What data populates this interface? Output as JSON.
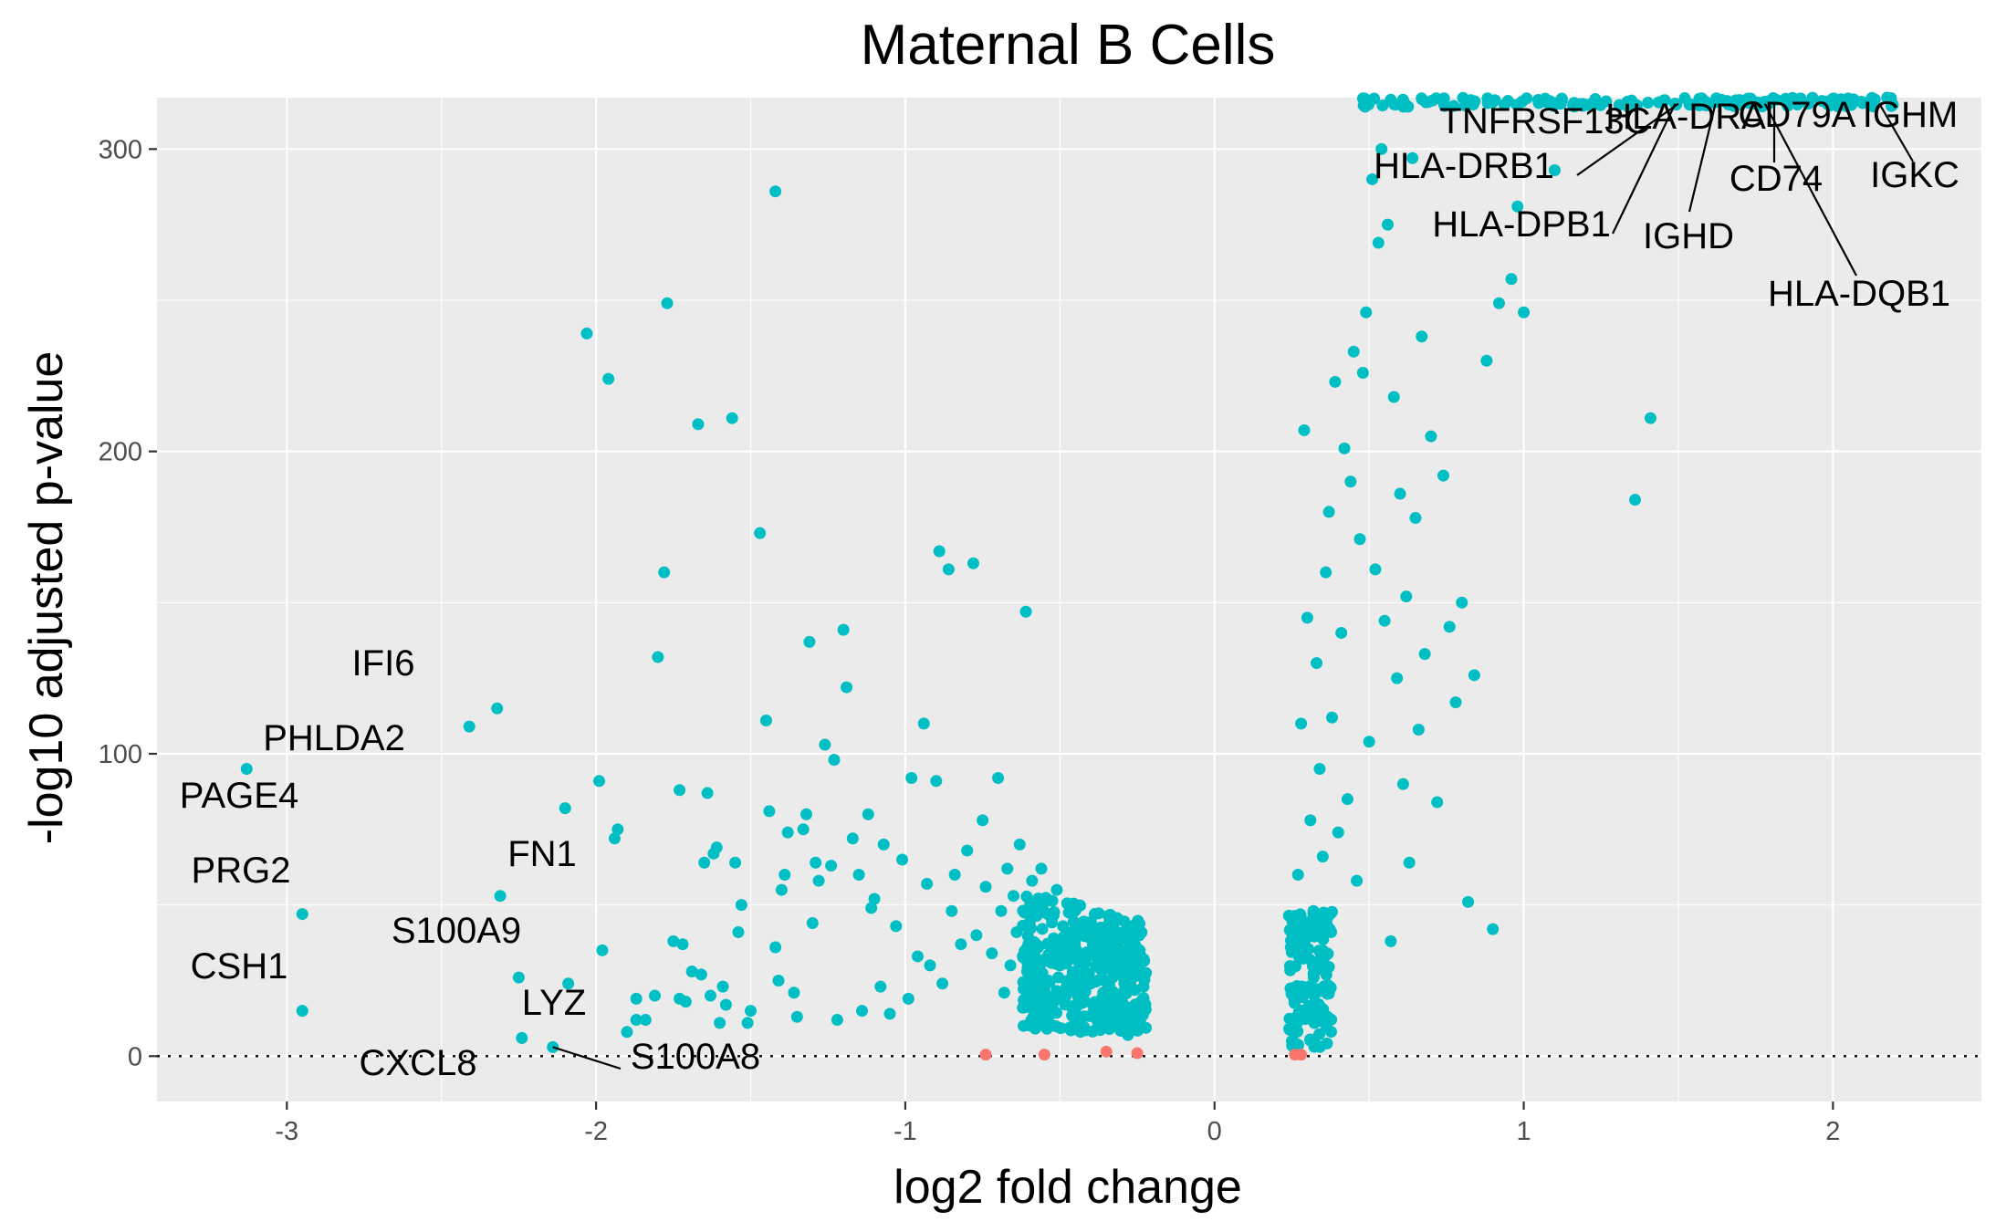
{
  "chart_data": {
    "type": "scatter",
    "title": "Maternal B Cells",
    "xlabel": "log2 fold change",
    "ylabel": "-log10 adjusted p-value",
    "xlim": [
      -3.42,
      2.48
    ],
    "ylim": [
      -15,
      317
    ],
    "x_ticks": [
      -3,
      -2,
      -1,
      0,
      1,
      2
    ],
    "x_tick_labels": [
      "-3",
      "-2",
      "-1",
      "0",
      "1",
      "2"
    ],
    "y_ticks": [
      0,
      100,
      200,
      300
    ],
    "y_tick_labels": [
      "0",
      "100",
      "200",
      "300"
    ],
    "grid": true,
    "legend": "none",
    "reference_line": {
      "orientation": "horizontal",
      "y": 0,
      "style": "dotted"
    },
    "colors": {
      "significant": "#00BFC4",
      "not_significant": "#F8766D"
    },
    "series": [
      {
        "color": "#00BFC4",
        "points": [
          [
            -3.13,
            95
          ],
          [
            -2.95,
            47
          ],
          [
            -2.95,
            15
          ],
          [
            -2.41,
            109
          ],
          [
            -2.32,
            115
          ],
          [
            -2.31,
            53
          ],
          [
            -2.25,
            26
          ],
          [
            -2.24,
            6
          ],
          [
            -2.14,
            3
          ],
          [
            -2.1,
            82
          ],
          [
            -2.09,
            24
          ],
          [
            -2.03,
            239
          ],
          [
            -1.99,
            91
          ],
          [
            -1.98,
            35
          ],
          [
            -1.96,
            224
          ],
          [
            -1.94,
            72
          ],
          [
            -1.93,
            75
          ],
          [
            -1.9,
            8
          ],
          [
            -1.87,
            19
          ],
          [
            -1.87,
            12
          ],
          [
            -1.84,
            12
          ],
          [
            -1.81,
            20
          ],
          [
            -1.8,
            132
          ],
          [
            -1.78,
            160
          ],
          [
            -1.77,
            249
          ],
          [
            -1.75,
            38
          ],
          [
            -1.73,
            88
          ],
          [
            -1.73,
            19
          ],
          [
            -1.72,
            37
          ],
          [
            -1.71,
            18
          ],
          [
            -1.69,
            28
          ],
          [
            -1.67,
            209
          ],
          [
            -1.66,
            27
          ],
          [
            -1.65,
            64
          ],
          [
            -1.64,
            87
          ],
          [
            -1.63,
            20
          ],
          [
            -1.62,
            67
          ],
          [
            -1.61,
            69
          ],
          [
            -1.6,
            11
          ],
          [
            -1.59,
            23
          ],
          [
            -1.58,
            17
          ],
          [
            -1.56,
            211
          ],
          [
            -1.55,
            64
          ],
          [
            -1.54,
            41
          ],
          [
            -1.53,
            50
          ],
          [
            -1.51,
            11
          ],
          [
            -1.5,
            15
          ],
          [
            -1.47,
            173
          ],
          [
            -1.45,
            111
          ],
          [
            -1.44,
            81
          ],
          [
            -1.42,
            286
          ],
          [
            -1.42,
            36
          ],
          [
            -1.41,
            25
          ],
          [
            -1.4,
            55
          ],
          [
            -1.39,
            60
          ],
          [
            -1.38,
            74
          ],
          [
            -1.36,
            21
          ],
          [
            -1.35,
            13
          ],
          [
            -1.33,
            75
          ],
          [
            -1.32,
            80
          ],
          [
            -1.31,
            137
          ],
          [
            -1.3,
            44
          ],
          [
            -1.29,
            64
          ],
          [
            -1.28,
            58
          ],
          [
            -1.26,
            103
          ],
          [
            -1.24,
            63
          ],
          [
            -1.23,
            98
          ],
          [
            -1.22,
            12
          ],
          [
            -1.2,
            141
          ],
          [
            -1.19,
            122
          ],
          [
            -1.17,
            72
          ],
          [
            -1.15,
            60
          ],
          [
            -1.14,
            15
          ],
          [
            -1.12,
            80
          ],
          [
            -1.11,
            49
          ],
          [
            -1.1,
            52
          ],
          [
            -1.08,
            23
          ],
          [
            -1.07,
            70
          ],
          [
            -1.05,
            14
          ],
          [
            -1.03,
            43
          ],
          [
            -1.01,
            65
          ],
          [
            -0.99,
            19
          ],
          [
            -0.98,
            92
          ],
          [
            -0.96,
            33
          ],
          [
            -0.94,
            110
          ],
          [
            -0.93,
            57
          ],
          [
            -0.92,
            30
          ],
          [
            -0.9,
            91
          ],
          [
            -0.89,
            167
          ],
          [
            -0.88,
            24
          ],
          [
            -0.86,
            161
          ],
          [
            -0.85,
            48
          ],
          [
            -0.84,
            60
          ],
          [
            -0.82,
            37
          ],
          [
            -0.8,
            68
          ],
          [
            -0.78,
            163
          ],
          [
            -0.77,
            40
          ],
          [
            -0.75,
            78
          ],
          [
            -0.74,
            56
          ],
          [
            -0.72,
            34
          ],
          [
            -0.7,
            92
          ],
          [
            -0.69,
            48
          ],
          [
            -0.68,
            21
          ],
          [
            -0.67,
            62
          ],
          [
            -0.66,
            30
          ],
          [
            -0.65,
            53
          ],
          [
            -0.64,
            41
          ],
          [
            -0.63,
            70
          ],
          [
            -0.62,
            16
          ],
          [
            -0.61,
            147
          ],
          [
            -0.6,
            44
          ],
          [
            -0.59,
            58
          ],
          [
            -0.58,
            27
          ],
          [
            -0.57,
            36
          ],
          [
            -0.56,
            62
          ],
          [
            -0.55,
            22
          ],
          [
            -0.54,
            47
          ],
          [
            -0.53,
            14
          ],
          [
            -0.52,
            39
          ],
          [
            -0.51,
            55
          ],
          [
            -0.5,
            30
          ],
          [
            -0.49,
            43
          ],
          [
            -0.48,
            20
          ],
          [
            -0.47,
            36
          ],
          [
            -0.46,
            50
          ],
          [
            -0.45,
            11
          ],
          [
            -0.44,
            28
          ],
          [
            -0.43,
            41
          ],
          [
            -0.42,
            18
          ],
          [
            -0.41,
            33
          ],
          [
            -0.4,
            24
          ],
          [
            -0.39,
            38
          ],
          [
            -0.38,
            13
          ],
          [
            -0.37,
            29
          ],
          [
            -0.36,
            21
          ],
          [
            -0.35,
            35
          ],
          [
            -0.34,
            9
          ],
          [
            -0.33,
            26
          ],
          [
            -0.32,
            17
          ],
          [
            -0.31,
            30
          ],
          [
            -0.3,
            12
          ],
          [
            -0.29,
            22
          ],
          [
            -0.28,
            7
          ],
          [
            -0.27,
            16
          ],
          [
            0.25,
            5
          ],
          [
            0.26,
            35
          ],
          [
            0.27,
            60
          ],
          [
            0.28,
            110
          ],
          [
            0.29,
            207
          ],
          [
            0.3,
            145
          ],
          [
            0.31,
            78
          ],
          [
            0.32,
            48
          ],
          [
            0.33,
            130
          ],
          [
            0.34,
            95
          ],
          [
            0.35,
            66
          ],
          [
            0.36,
            160
          ],
          [
            0.37,
            180
          ],
          [
            0.38,
            112
          ],
          [
            0.39,
            223
          ],
          [
            0.4,
            74
          ],
          [
            0.41,
            140
          ],
          [
            0.42,
            201
          ],
          [
            0.43,
            85
          ],
          [
            0.44,
            190
          ],
          [
            0.45,
            233
          ],
          [
            0.46,
            58
          ],
          [
            0.47,
            171
          ],
          [
            0.48,
            226
          ],
          [
            0.49,
            246
          ],
          [
            0.5,
            104
          ],
          [
            0.51,
            290
          ],
          [
            0.52,
            161
          ],
          [
            0.53,
            269
          ],
          [
            0.54,
            300
          ],
          [
            0.55,
            144
          ],
          [
            0.56,
            275
          ],
          [
            0.57,
            38
          ],
          [
            0.58,
            218
          ],
          [
            0.59,
            125
          ],
          [
            0.6,
            186
          ],
          [
            0.61,
            90
          ],
          [
            0.62,
            152
          ],
          [
            0.63,
            64
          ],
          [
            0.64,
            297
          ],
          [
            0.65,
            178
          ],
          [
            0.66,
            108
          ],
          [
            0.67,
            238
          ],
          [
            0.68,
            133
          ],
          [
            0.7,
            205
          ],
          [
            0.72,
            84
          ],
          [
            0.74,
            192
          ],
          [
            0.76,
            142
          ],
          [
            0.78,
            117
          ],
          [
            0.8,
            150
          ],
          [
            0.82,
            51
          ],
          [
            0.84,
            126
          ],
          [
            0.88,
            230
          ],
          [
            0.9,
            42
          ],
          [
            0.92,
            249
          ],
          [
            0.96,
            257
          ],
          [
            0.98,
            281
          ],
          [
            1.0,
            246
          ],
          [
            1.1,
            293
          ],
          [
            1.36,
            184
          ],
          [
            1.41,
            211
          ]
        ]
      },
      {
        "color": "#F8766D",
        "points": [
          [
            -0.74,
            0.5
          ],
          [
            -0.55,
            0.5
          ],
          [
            -0.35,
            1.5
          ],
          [
            -0.25,
            1
          ],
          [
            0.26,
            0.5
          ],
          [
            0.28,
            0.5
          ]
        ]
      }
    ],
    "annotations": [
      {
        "label": "IFI6",
        "x": -2.32,
        "y": 115
      },
      {
        "label": "PHLDA2",
        "x": -2.41,
        "y": 109
      },
      {
        "label": "PAGE4",
        "x": -3.13,
        "y": 95
      },
      {
        "label": "FN1",
        "x": -2.31,
        "y": 53
      },
      {
        "label": "PRG2",
        "x": -2.95,
        "y": 47
      },
      {
        "label": "S100A9",
        "x": -2.25,
        "y": 26
      },
      {
        "label": "CSH1",
        "x": -2.95,
        "y": 15
      },
      {
        "label": "LYZ",
        "x": -2.24,
        "y": 6
      },
      {
        "label": "S100A8",
        "x": -2.14,
        "y": 3
      },
      {
        "label": "CXCL8",
        "x": -2.24,
        "y": 6
      },
      {
        "label": "TNFRSF13C",
        "x": 1.53,
        "y": 315
      },
      {
        "label": "HLA-DRA",
        "x": 1.56,
        "y": 315
      },
      {
        "label": "CD79A",
        "x": 1.8,
        "y": 315
      },
      {
        "label": "IGHM",
        "x": 2.2,
        "y": 315
      },
      {
        "label": "HLA-DRB1",
        "x": 1.5,
        "y": 315
      },
      {
        "label": "CD74",
        "x": 1.81,
        "y": 315
      },
      {
        "label": "IGKC",
        "x": 2.15,
        "y": 315
      },
      {
        "label": "HLA-DPB1",
        "x": 1.49,
        "y": 315
      },
      {
        "label": "IGHD",
        "x": 1.62,
        "y": 315
      },
      {
        "label": "HLA-DQB1",
        "x": 1.78,
        "y": 315
      }
    ]
  }
}
